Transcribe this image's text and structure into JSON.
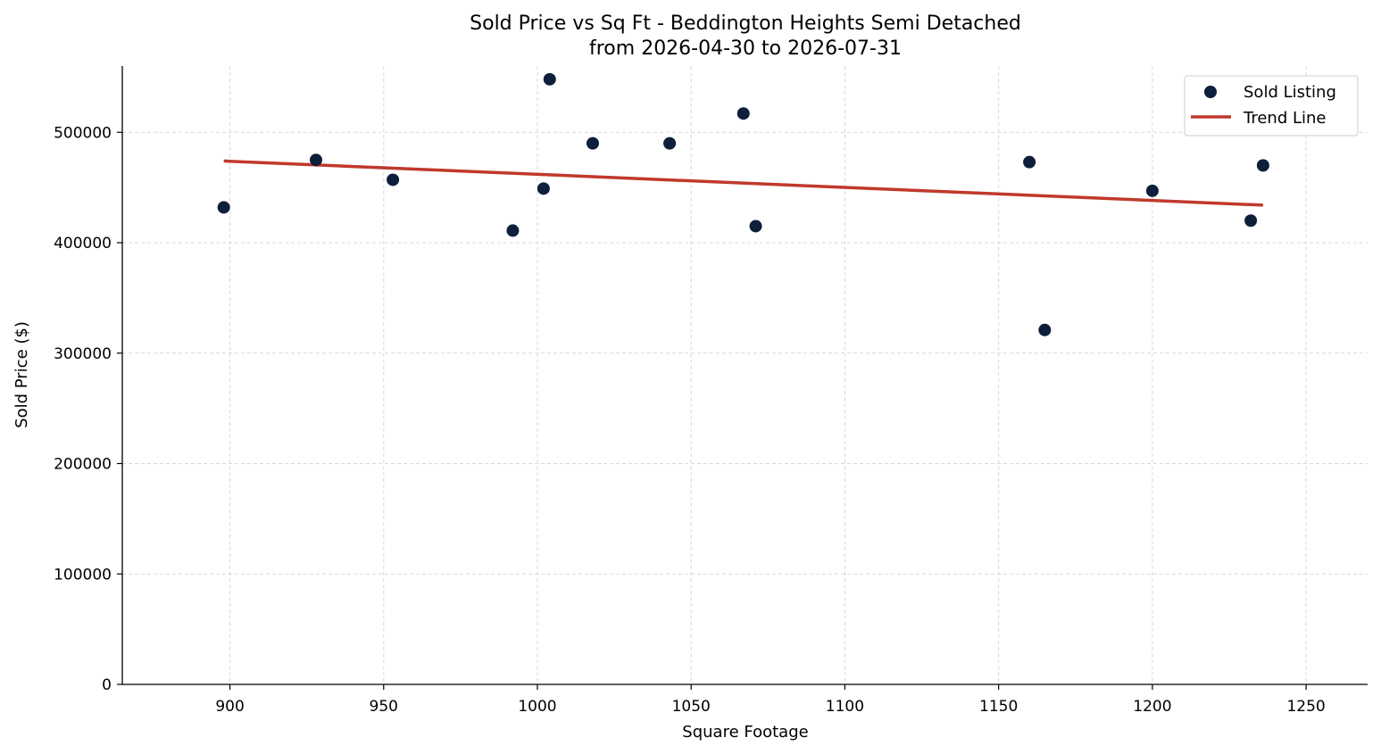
{
  "chart_data": {
    "type": "scatter",
    "title_line1": "Sold Price vs Sq Ft - Beddington Heights Semi Detached",
    "title_line2": "from 2026-04-30 to 2026-07-31",
    "xlabel": "Square Footage",
    "ylabel": "Sold Price ($)",
    "xlim": [
      865,
      1270
    ],
    "ylim": [
      0,
      560000
    ],
    "xticks": [
      900,
      950,
      1000,
      1050,
      1100,
      1150,
      1200,
      1250
    ],
    "yticks": [
      0,
      100000,
      200000,
      300000,
      400000,
      500000
    ],
    "grid": true,
    "legend_position": "top-right",
    "legend": [
      {
        "label": "Sold Listing",
        "kind": "marker"
      },
      {
        "label": "Trend Line",
        "kind": "line"
      }
    ],
    "series": [
      {
        "name": "Sold Listing",
        "kind": "scatter",
        "color": "#0d1f3a",
        "points": [
          {
            "x": 898,
            "y": 432000
          },
          {
            "x": 928,
            "y": 475000
          },
          {
            "x": 953,
            "y": 457000
          },
          {
            "x": 992,
            "y": 411000
          },
          {
            "x": 1002,
            "y": 449000
          },
          {
            "x": 1004,
            "y": 548000
          },
          {
            "x": 1018,
            "y": 490000
          },
          {
            "x": 1043,
            "y": 490000
          },
          {
            "x": 1067,
            "y": 517000
          },
          {
            "x": 1071,
            "y": 415000
          },
          {
            "x": 1160,
            "y": 473000
          },
          {
            "x": 1165,
            "y": 321000
          },
          {
            "x": 1200,
            "y": 447000
          },
          {
            "x": 1232,
            "y": 420000
          },
          {
            "x": 1236,
            "y": 470000
          }
        ]
      },
      {
        "name": "Trend Line",
        "kind": "line",
        "color": "#c0392b",
        "points": [
          {
            "x": 898,
            "y": 474000
          },
          {
            "x": 1236,
            "y": 434000
          }
        ]
      }
    ]
  }
}
